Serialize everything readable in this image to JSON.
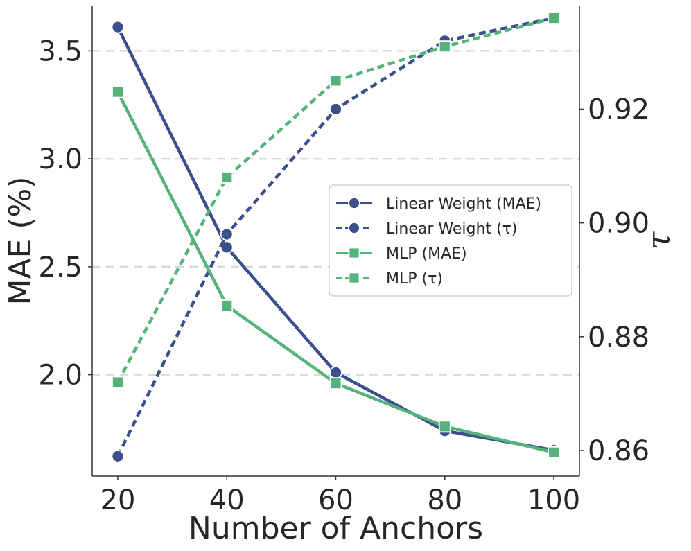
{
  "chart_data": {
    "type": "line",
    "xlabel": "Number of Anchors",
    "ylabel_left": "MAE (%)",
    "ylabel_right": "τ",
    "x": [
      20,
      40,
      60,
      80,
      100
    ],
    "x_ticks": [
      "20",
      "40",
      "60",
      "80",
      "100"
    ],
    "y_left_ticks": [
      2.0,
      2.5,
      3.0,
      3.5
    ],
    "y_left_tick_labels": [
      "2.0",
      "2.5",
      "3.0",
      "3.5"
    ],
    "y_left_lim": [
      1.53,
      3.71
    ],
    "y_right_ticks": [
      0.86,
      0.88,
      0.9,
      0.92
    ],
    "y_right_tick_labels": [
      "0.86",
      "0.88",
      "0.90",
      "0.92"
    ],
    "y_right_lim": [
      0.8555,
      0.9382
    ],
    "grid": "horizontal dashed at left-axis ticks",
    "legend_position": "center-right",
    "series": [
      {
        "name": "Linear Weight (MAE)",
        "axis": "left",
        "color": "#3a4f8c",
        "style": "solid",
        "marker": "circle",
        "values": [
          3.61,
          2.59,
          2.01,
          1.74,
          1.65
        ]
      },
      {
        "name": "Linear Weight (τ)",
        "axis": "right",
        "color": "#3a4f8c",
        "style": "dashed",
        "marker": "circle",
        "values": [
          0.859,
          0.898,
          0.92,
          0.932,
          0.936
        ]
      },
      {
        "name": "MLP (MAE)",
        "axis": "left",
        "color": "#55b27a",
        "style": "solid",
        "marker": "square",
        "values": [
          3.31,
          2.32,
          1.96,
          1.76,
          1.64
        ]
      },
      {
        "name": "MLP (τ)",
        "axis": "right",
        "color": "#55b27a",
        "style": "dashed",
        "marker": "square",
        "values": [
          0.872,
          0.908,
          0.925,
          0.931,
          0.936
        ]
      }
    ]
  }
}
